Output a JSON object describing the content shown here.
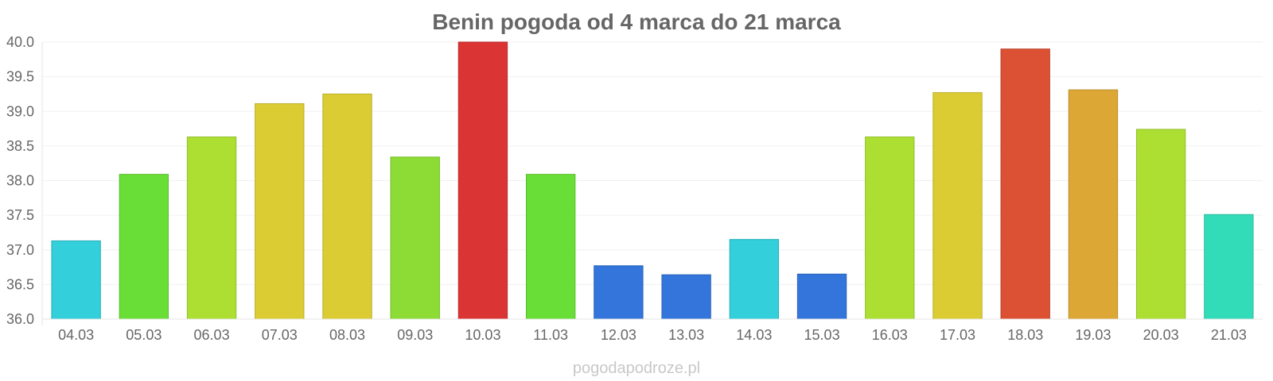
{
  "chart_data": {
    "type": "bar",
    "title": "Benin pogoda od 4 marca do 21 marca",
    "xlabel": "",
    "ylabel": "",
    "ylim": [
      36.0,
      40.0
    ],
    "yticks": [
      "36.0",
      "36.5",
      "37.0",
      "37.5",
      "38.0",
      "38.5",
      "39.0",
      "39.5",
      "40.0"
    ],
    "categories": [
      "04.03",
      "05.03",
      "06.03",
      "07.03",
      "08.03",
      "09.03",
      "10.03",
      "11.03",
      "12.03",
      "13.03",
      "14.03",
      "15.03",
      "16.03",
      "17.03",
      "18.03",
      "19.03",
      "20.03",
      "21.03"
    ],
    "values": [
      37.13,
      38.09,
      38.63,
      39.11,
      39.25,
      38.34,
      40.0,
      38.09,
      36.77,
      36.64,
      37.15,
      36.65,
      38.63,
      39.27,
      39.9,
      39.31,
      38.74,
      37.51
    ],
    "colors": [
      "#33cfdb",
      "#69de36",
      "#addf33",
      "#dccc33",
      "#dccc33",
      "#8cdc35",
      "#db3434",
      "#69de36",
      "#3375db",
      "#3375db",
      "#33cfdb",
      "#3375db",
      "#addf33",
      "#dccc33",
      "#dc5134",
      "#dca734",
      "#addf33",
      "#33dcb8"
    ],
    "grid": true,
    "legend": "none"
  },
  "watermark": "pogodapodroze.pl"
}
